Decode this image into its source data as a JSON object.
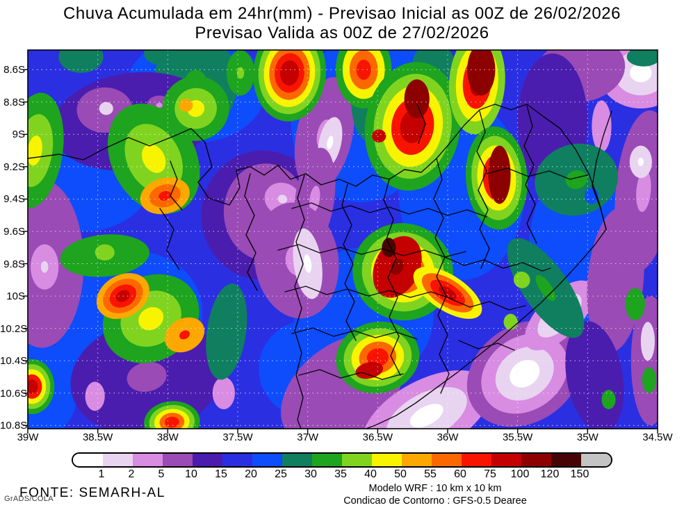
{
  "title": {
    "line1": "Chuva Acumulada em 24hr(mm) - Previsao Inicial as 00Z de 26/02/2026",
    "line2": "Previsao Valida as 00Z de 27/02/2026"
  },
  "footer": {
    "fonte": "FONTE: SEMARH-AL",
    "credit": "GrADS/COLA",
    "model_line1": "Modelo WRF : 10 km x 10 km",
    "model_line2": "Condicao de Contorno : GFS-0.5 Dearee"
  },
  "chart_data": {
    "type": "heatmap",
    "subtype": "filled-contour-precipitation-map",
    "title_line1": "Chuva Acumulada em 24hr(mm) - Previsao Inicial as 00Z de 26/02/2026",
    "title_line2": "Previsao Valida as 00Z de 27/02/2026",
    "units": "mm",
    "lon_ticks": [
      "39W",
      "38.5W",
      "38W",
      "37.5W",
      "37W",
      "36.5W",
      "36W",
      "35.5W",
      "35W",
      "34.5W"
    ],
    "lat_ticks": [
      "8.6S",
      "8.8S",
      "9S",
      "9.2S",
      "9.4S",
      "9.6S",
      "9.8S",
      "10S",
      "10.2S",
      "10.4S",
      "10.6S",
      "10.8S"
    ],
    "lon_range_deg_west": [
      39.0,
      34.5
    ],
    "lat_range_deg_south": [
      8.48,
      10.82
    ],
    "grid": "dotted-white-graticule-0.5deg-lon-0.2deg-lat",
    "legend": {
      "levels": [
        1,
        2,
        5,
        10,
        15,
        20,
        25,
        30,
        35,
        40,
        50,
        55,
        60,
        75,
        100,
        120,
        150
      ],
      "labels": [
        "1",
        "2",
        "5",
        "10",
        "15",
        "20",
        "25",
        "30",
        "35",
        "40",
        "50",
        "55",
        "60",
        "75",
        "100",
        "120",
        "150"
      ],
      "colors": [
        "#ffffff",
        "#e8d4f0",
        "#d88ce2",
        "#9a4bb5",
        "#4a1dae",
        "#2b2fe2",
        "#0d4dfc",
        "#0f7f60",
        "#1ea41e",
        "#80d420",
        "#f8f400",
        "#fca800",
        "#fc6800",
        "#f81400",
        "#c40000",
        "#8c0000",
        "#480404",
        "#c4c4c4"
      ],
      "position": "bottom"
    },
    "base_color_index": 5,
    "cells_format": "[lon_deg_west, lat_deg_south, radius_x_deg, radius_y_deg, rotation_deg, ring_palette_indices_outer_to_inner]",
    "cells": [
      [
        38.6,
        9.25,
        0.5,
        0.35,
        0,
        [
          6
        ]
      ],
      [
        37.8,
        8.72,
        0.5,
        0.33,
        0,
        [
          6
        ]
      ],
      [
        36.62,
        8.92,
        0.5,
        0.5,
        0,
        [
          6
        ]
      ],
      [
        35.9,
        9.35,
        0.45,
        0.55,
        0,
        [
          6
        ]
      ],
      [
        38.3,
        10.12,
        0.55,
        0.4,
        -10,
        [
          6
        ]
      ],
      [
        36.6,
        10.12,
        0.5,
        0.42,
        0,
        [
          6
        ]
      ],
      [
        35.02,
        9.72,
        0.4,
        0.55,
        0,
        [
          6
        ]
      ],
      [
        38.92,
        10.58,
        0.28,
        0.3,
        0,
        [
          6
        ]
      ],
      [
        36.3,
        8.6,
        0.32,
        0.25,
        0,
        [
          6
        ]
      ],
      [
        37.0,
        10.45,
        0.35,
        0.3,
        -20,
        [
          6
        ]
      ],
      [
        38.62,
        8.52,
        0.16,
        0.1,
        0,
        [
          7
        ]
      ],
      [
        38.05,
        8.5,
        0.12,
        0.07,
        0,
        [
          7
        ]
      ],
      [
        37.8,
        8.68,
        0.3,
        0.3,
        0,
        [
          7,
          8
        ]
      ],
      [
        38.25,
        8.92,
        0.58,
        0.3,
        -8,
        [
          4
        ]
      ],
      [
        38.45,
        8.85,
        0.2,
        0.14,
        0,
        [
          3
        ]
      ],
      [
        38.44,
        8.84,
        0.05,
        0.04,
        0,
        [
          1
        ]
      ],
      [
        38.06,
        8.82,
        0.09,
        0.06,
        0,
        [
          3,
          2
        ]
      ],
      [
        37.85,
        8.82,
        0.08,
        0.05,
        0,
        [
          3,
          2
        ]
      ],
      [
        38.9,
        9.8,
        0.3,
        0.52,
        0,
        [
          3
        ]
      ],
      [
        38.88,
        9.82,
        0.1,
        0.14,
        0,
        [
          2,
          1
        ]
      ],
      [
        37.32,
        9.5,
        0.44,
        0.4,
        0,
        [
          4
        ]
      ],
      [
        37.3,
        9.48,
        0.3,
        0.3,
        0,
        [
          3
        ]
      ],
      [
        37.18,
        9.4,
        0.13,
        0.1,
        20,
        [
          2,
          1
        ]
      ],
      [
        36.88,
        9.0,
        0.2,
        0.36,
        12,
        [
          3,
          2
        ]
      ],
      [
        36.84,
        9.05,
        0.08,
        0.16,
        12,
        [
          1,
          0
        ]
      ],
      [
        36.95,
        9.4,
        0.14,
        0.32,
        8,
        [
          3,
          2
        ]
      ],
      [
        37.08,
        9.78,
        0.3,
        0.36,
        -8,
        [
          3,
          2
        ]
      ],
      [
        37.0,
        9.8,
        0.1,
        0.22,
        -8,
        [
          1,
          0
        ]
      ],
      [
        38.15,
        10.5,
        0.55,
        0.35,
        -12,
        [
          4,
          3
        ]
      ],
      [
        38.52,
        10.62,
        0.07,
        0.09,
        0,
        [
          2
        ]
      ],
      [
        37.6,
        10.6,
        0.08,
        0.1,
        0,
        [
          2
        ]
      ],
      [
        36.75,
        10.58,
        0.5,
        0.28,
        -38,
        [
          3
        ]
      ],
      [
        36.15,
        10.74,
        0.5,
        0.22,
        -28,
        [
          2,
          1,
          0
        ]
      ],
      [
        35.45,
        10.48,
        0.44,
        0.3,
        -35,
        [
          3,
          2,
          1,
          0
        ]
      ],
      [
        35.2,
        10.12,
        0.32,
        0.13,
        -45,
        [
          2,
          1,
          0
        ]
      ],
      [
        34.62,
        8.62,
        0.3,
        0.22,
        0,
        [
          2,
          1,
          0
        ]
      ],
      [
        34.6,
        9.35,
        0.2,
        0.5,
        5,
        [
          3,
          2
        ]
      ],
      [
        34.62,
        9.17,
        0.08,
        0.1,
        0,
        [
          1,
          0
        ]
      ],
      [
        35.05,
        8.6,
        0.32,
        0.2,
        -10,
        [
          3
        ]
      ],
      [
        34.9,
        8.95,
        0.07,
        0.16,
        0,
        [
          2
        ]
      ],
      [
        35.25,
        8.92,
        0.25,
        0.42,
        0,
        [
          4
        ]
      ],
      [
        34.8,
        9.9,
        0.2,
        0.45,
        5,
        [
          3
        ]
      ],
      [
        34.95,
        10.5,
        0.2,
        0.35,
        -10,
        [
          4
        ]
      ],
      [
        34.55,
        10.4,
        0.14,
        0.4,
        0,
        [
          3
        ]
      ],
      [
        34.57,
        10.28,
        0.05,
        0.12,
        0,
        [
          1
        ]
      ],
      [
        38.45,
        9.75,
        0.32,
        0.13,
        -5,
        [
          8
        ]
      ],
      [
        38.45,
        9.73,
        0.07,
        0.05,
        0,
        [
          9
        ]
      ],
      [
        37.58,
        10.22,
        0.14,
        0.3,
        8,
        [
          7
        ]
      ],
      [
        36.57,
        8.78,
        0.12,
        0.26,
        0,
        [
          7
        ]
      ],
      [
        36.1,
        8.56,
        0.15,
        0.12,
        0,
        [
          7
        ]
      ],
      [
        35.08,
        9.28,
        0.3,
        0.22,
        -15,
        [
          7,
          8
        ]
      ],
      [
        34.97,
        9.38,
        0.05,
        0.05,
        0,
        [
          6
        ]
      ],
      [
        35.3,
        9.95,
        0.42,
        0.14,
        55,
        [
          7,
          8
        ]
      ],
      [
        35.47,
        9.9,
        0.06,
        0.05,
        55,
        [
          9
        ]
      ],
      [
        35.55,
        10.16,
        0.05,
        0.05,
        0,
        [
          9
        ]
      ],
      [
        34.66,
        10.05,
        0.07,
        0.1,
        0,
        [
          8
        ]
      ],
      [
        34.56,
        10.52,
        0.05,
        0.08,
        0,
        [
          8
        ]
      ],
      [
        34.85,
        10.64,
        0.05,
        0.06,
        0,
        [
          8
        ]
      ],
      [
        34.6,
        8.52,
        0.12,
        0.06,
        0,
        [
          7
        ]
      ],
      [
        37.48,
        8.62,
        0.1,
        0.14,
        0,
        [
          8,
          9
        ]
      ],
      [
        38.95,
        9.1,
        0.2,
        0.36,
        8,
        [
          8,
          9,
          10
        ]
      ],
      [
        37.8,
        8.84,
        0.24,
        0.2,
        -15,
        [
          8,
          9,
          10
        ]
      ],
      [
        37.87,
        8.82,
        0.05,
        0.04,
        0,
        [
          11
        ]
      ],
      [
        38.1,
        9.15,
        0.3,
        0.36,
        -28,
        [
          8,
          9,
          10
        ]
      ],
      [
        38.02,
        9.38,
        0.18,
        0.11,
        -15,
        [
          11,
          12,
          13
        ]
      ],
      [
        37.13,
        8.62,
        0.26,
        0.3,
        4,
        [
          8,
          9,
          10,
          12,
          13,
          14
        ]
      ],
      [
        36.6,
        8.6,
        0.2,
        0.24,
        0,
        [
          8,
          10,
          12,
          13
        ]
      ],
      [
        36.25,
        8.95,
        0.34,
        0.4,
        8,
        [
          8,
          9,
          10,
          13,
          14
        ]
      ],
      [
        36.22,
        8.78,
        0.09,
        0.12,
        0,
        [
          15
        ]
      ],
      [
        36.49,
        9.01,
        0.05,
        0.04,
        0,
        [
          14
        ]
      ],
      [
        35.79,
        8.68,
        0.2,
        0.32,
        4,
        [
          9,
          10,
          13,
          14
        ]
      ],
      [
        35.76,
        8.6,
        0.1,
        0.16,
        0,
        [
          15
        ]
      ],
      [
        35.65,
        9.27,
        0.22,
        0.32,
        -4,
        [
          8,
          9,
          10,
          13,
          14
        ]
      ],
      [
        35.63,
        9.25,
        0.08,
        0.18,
        0,
        [
          15
        ]
      ],
      [
        36.32,
        9.85,
        0.36,
        0.3,
        15,
        [
          8,
          9,
          10,
          12,
          13
        ]
      ],
      [
        36.36,
        9.82,
        0.16,
        0.2,
        25,
        [
          14,
          15
        ]
      ],
      [
        36.42,
        9.7,
        0.05,
        0.06,
        0,
        [
          16
        ]
      ],
      [
        36.0,
        9.98,
        0.28,
        0.11,
        33,
        [
          10,
          12,
          13,
          14
        ]
      ],
      [
        36.5,
        10.38,
        0.3,
        0.22,
        -12,
        [
          8,
          9,
          10,
          12,
          13
        ]
      ],
      [
        36.56,
        10.46,
        0.1,
        0.05,
        -12,
        [
          14
        ]
      ],
      [
        38.12,
        10.14,
        0.36,
        0.26,
        -32,
        [
          8,
          9,
          10
        ]
      ],
      [
        38.32,
        10.0,
        0.2,
        0.13,
        -30,
        [
          11,
          12,
          13,
          14
        ]
      ],
      [
        37.88,
        10.24,
        0.15,
        0.1,
        -30,
        [
          11,
          13
        ]
      ],
      [
        38.97,
        10.56,
        0.16,
        0.17,
        0,
        [
          8,
          9,
          10,
          13,
          14
        ]
      ],
      [
        37.97,
        10.78,
        0.2,
        0.13,
        -5,
        [
          8,
          9,
          10,
          12,
          13
        ]
      ]
    ],
    "boundaries": [
      "M0,156 L45,150 L80,158 L110,142 L145,126 L175,138 L210,124 L235,113 L255,133 L265,168 L245,190 L260,213 L290,223 L305,198 L300,173 L320,168 L340,180 L360,166 L378,186 L400,178 L422,194 L448,186 L472,196 L496,180 L520,186 L542,172 L566,176 L588,156 L608,133 L628,108 L650,86 L672,78 L695,86 L718,78 L742,96 L766,113 L788,143 L808,180 L822,220 L832,258",
      "M840,88 L828,123 L818,160 L812,196 L824,228 L832,258 L816,280 L792,308 L766,336 L738,364 L708,390 L678,416 L648,440 L618,464 L588,486 L558,508 L530,526 L500,540 L478,548",
      "M398,180 L388,213 L398,244 L386,276 L396,308 L384,340 L394,372 L384,404 L394,436 L386,468 L396,500 L388,532 L394,548",
      "M205,160 L215,186 L205,210 L222,230",
      "M320,178 L312,210 L326,238 L314,266 L328,292 L316,320 L330,346",
      "M460,193 L452,224 L466,252 L454,280 L468,308 L456,336 L470,362 L458,390 L472,418",
      "M520,186 L512,216 L526,244 L516,272 L530,300 L518,328 L532,356 L520,384 L534,412 L522,440 L536,468",
      "M588,156 L596,186 L584,214 L598,242 L586,270 L600,298 L588,326 L602,354 L590,382 L604,410 L592,438 L606,466 L594,494",
      "M650,88 L658,118 L646,146 L660,174 L648,202 L662,230 L650,258 L664,286 L652,314",
      "M718,80 L726,110 L714,138 L728,166 L716,194 L730,222 L718,250 L732,278",
      "M380,228 L408,220 L436,232 L464,224 L492,234 L520,226 L548,236 L576,228 L604,238 L632,230 L660,240",
      "M360,288 L390,280 L420,292 L450,284 L480,294 L510,286 L540,296 L570,288 L600,298 L630,290",
      "M370,348 L400,340 L430,352 L460,344 L490,354 L520,346 L550,356 L580,348 L610,358",
      "M380,408 L410,400 L440,412 L470,404 L500,414 L530,406 L560,416",
      "M390,468 L420,460 L450,472 L480,464 L510,474 L540,466",
      "M600,298 L628,310 L656,302 L684,314 L712,306 L740,318 L752,314",
      "M608,358 L636,370 L664,362 L692,374 L716,368",
      "M620,418 L648,430 L676,422 L700,432",
      "M190,228 L210,258 L200,288 L218,316",
      "M560,78 L572,106 L562,134",
      "M660,178 L690,170 L720,182 L750,174 L780,186 L805,180"
    ]
  }
}
